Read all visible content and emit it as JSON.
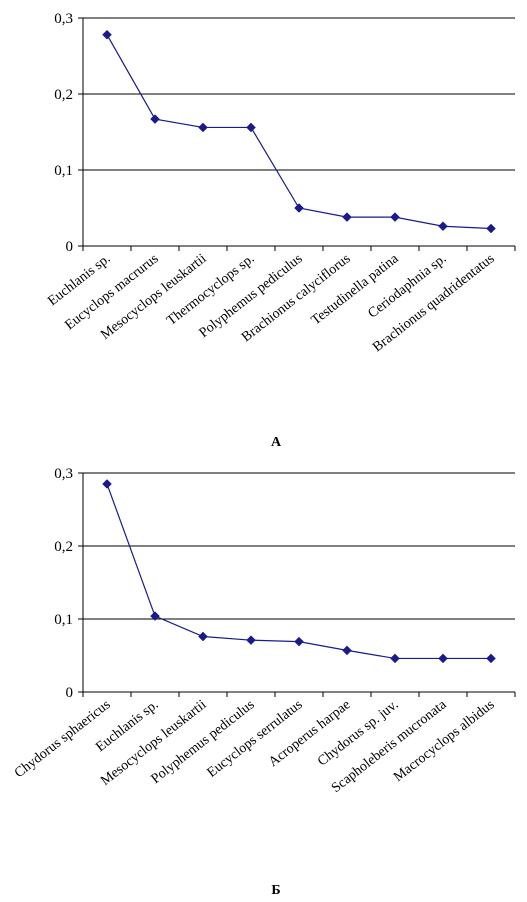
{
  "chart_data": [
    {
      "type": "line",
      "panel_label": "А",
      "categories": [
        "Euchlanis sp.",
        "Eucyclops macrurus",
        "Mesocyclops leuskartii",
        "Thermocyclops sp.",
        "Polyphemus pediculus",
        "Brachionus calyciflorus",
        "Testudinella patina",
        "Ceriodaphnia sp.",
        "Brachionus quadridentatus"
      ],
      "values": [
        0.278,
        0.167,
        0.156,
        0.156,
        0.05,
        0.038,
        0.038,
        0.026,
        0.023
      ],
      "ylim": [
        0,
        0.3
      ],
      "yticks": [
        "0",
        "0,1",
        "0,2",
        "0,3"
      ],
      "grid": true,
      "color": "#1a1a8c"
    },
    {
      "type": "line",
      "panel_label": "Б",
      "categories": [
        "Chydorus sphaericus",
        "Euchlanis sp.",
        "Mesocyclops leuskartii",
        "Polyphemus pediculus",
        "Eucyclops serrulatus",
        "Acroperus harpae",
        "Chydorus sp. juv.",
        "Scapholeberis mucronata",
        "Macrocyclops albidus"
      ],
      "values": [
        0.285,
        0.104,
        0.076,
        0.071,
        0.069,
        0.057,
        0.046,
        0.046,
        0.046
      ],
      "ylim": [
        0,
        0.3
      ],
      "yticks": [
        "0",
        "0,1",
        "0,2",
        "0,3"
      ],
      "grid": true,
      "color": "#1a1a8c"
    }
  ]
}
